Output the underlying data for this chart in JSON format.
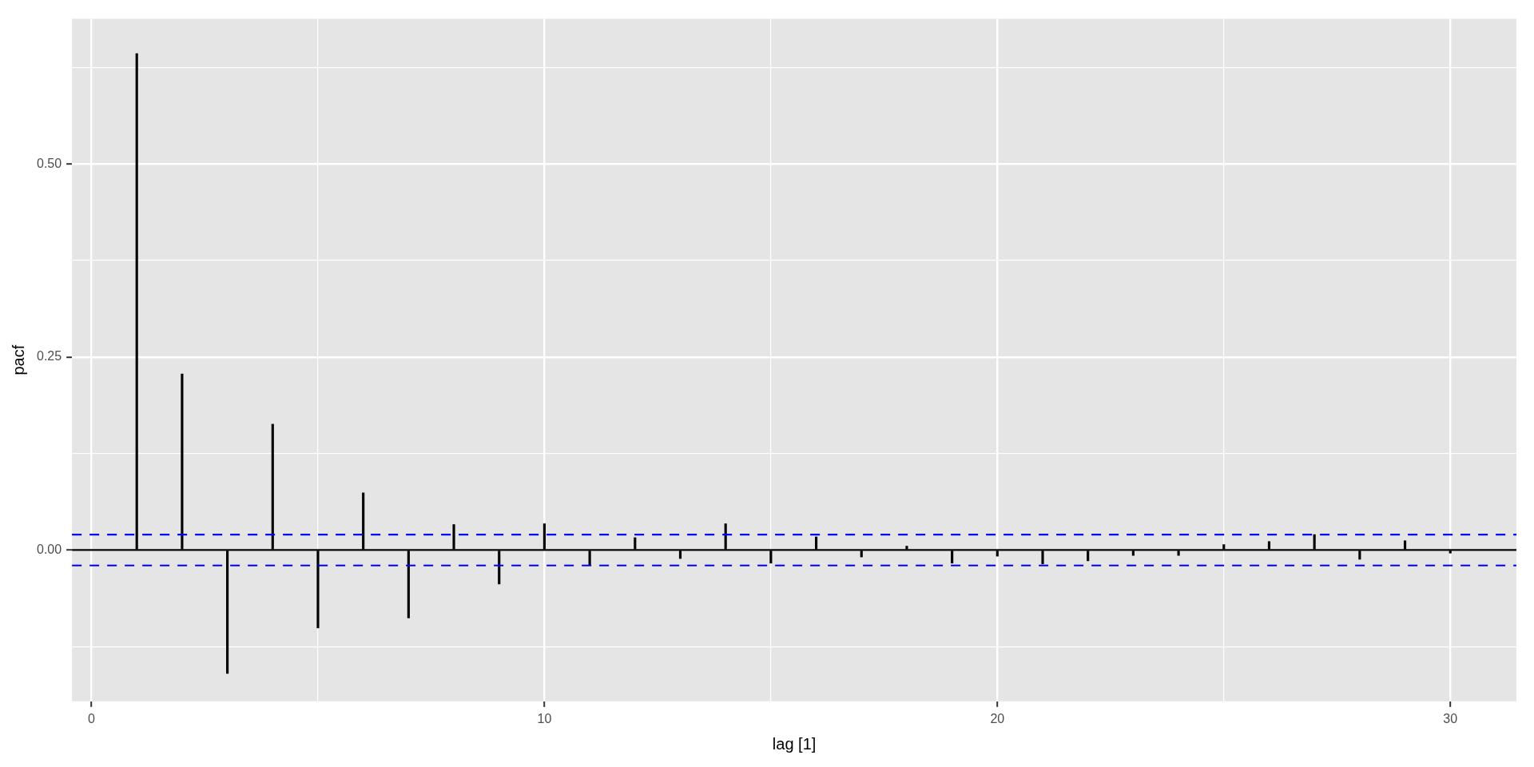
{
  "chart_data": {
    "type": "bar",
    "xlabel": "lag [1]",
    "ylabel": "pacf",
    "x": [
      1,
      2,
      3,
      4,
      5,
      6,
      7,
      8,
      9,
      10,
      11,
      12,
      13,
      14,
      15,
      16,
      17,
      18,
      19,
      20,
      21,
      22,
      23,
      24,
      25,
      26,
      27,
      28,
      29,
      30
    ],
    "values": [
      0.643,
      0.228,
      -0.16,
      0.163,
      -0.101,
      0.074,
      -0.088,
      0.033,
      -0.044,
      0.034,
      -0.019,
      0.016,
      -0.011,
      0.034,
      -0.017,
      0.017,
      -0.009,
      0.005,
      -0.017,
      -0.008,
      -0.018,
      -0.014,
      -0.007,
      -0.007,
      0.007,
      0.011,
      0.02,
      -0.012,
      0.012,
      -0.004
    ],
    "color": "#000000",
    "xlim": [
      -0.43,
      31.46
    ],
    "xticks": [
      0,
      {
        "value": 5,
        "label": null
      },
      10,
      {
        "value": 15,
        "label": null
      },
      20,
      {
        "value": 25,
        "label": null
      },
      30
    ],
    "ylim": [
      -0.196,
      0.688
    ],
    "yticks": [
      {
        "value": -0.125,
        "label": null
      },
      {
        "value": 0,
        "label": "0.00"
      },
      {
        "value": 0.125,
        "label": null
      },
      {
        "value": 0.25,
        "label": "0.25"
      },
      {
        "value": 0.375,
        "label": null
      },
      {
        "value": 0.5,
        "label": "0.50"
      },
      {
        "value": 0.625,
        "label": null
      }
    ],
    "ref_lines": [
      {
        "axis": "y",
        "value": 0,
        "color": "#000000",
        "line_style": "solid"
      },
      {
        "axis": "y",
        "value": 0.02,
        "color": "#0000ff",
        "line_style": "dashed"
      },
      {
        "axis": "y",
        "value": -0.02,
        "color": "#0000ff",
        "line_style": "dashed"
      }
    ],
    "grid": true
  }
}
